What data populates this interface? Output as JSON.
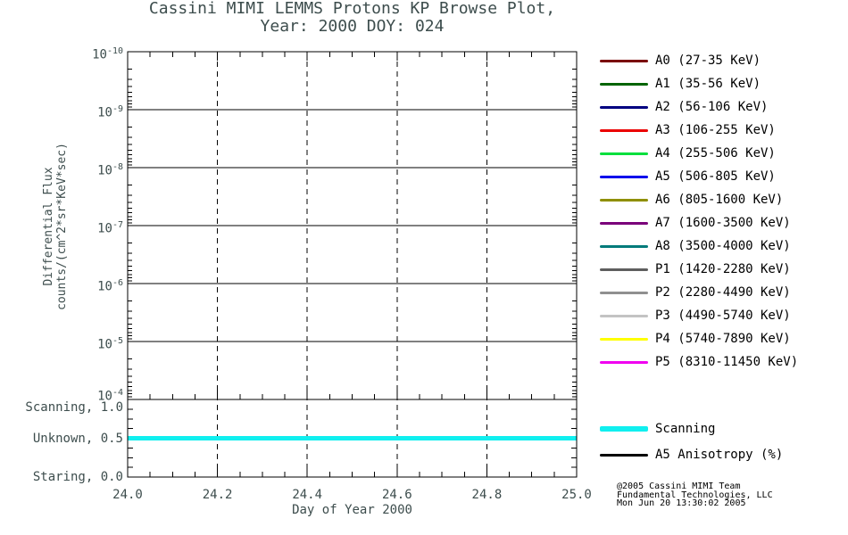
{
  "title": {
    "line1": "Cassini MIMI LEMMS Protons KP Browse Plot,",
    "line2": "Year: 2000 DOY: 024"
  },
  "chart_data": {
    "type": "line",
    "title": "Cassini MIMI LEMMS Protons KP Browse Plot, Year: 2000 DOY: 024",
    "xlabel": "Day of Year 2000",
    "ylabel_lines": [
      "Differential Flux",
      "counts/(cm^2*sr*KeV*sec)"
    ],
    "xlim": [
      24.0,
      25.0
    ],
    "x_tick_labels": [
      "24.0",
      "24.2",
      "24.4",
      "24.6",
      "24.8",
      "25.0"
    ],
    "x_minor_step": 0.05,
    "y_axis": {
      "scale": "log",
      "direction": "inverted-top-to-bottom",
      "exponents": [
        "-10",
        "-9",
        "-8",
        "-7",
        "-6",
        "-5",
        "-4"
      ]
    },
    "grid": {
      "horizontal": "solid",
      "vertical": "dashed"
    },
    "mode_axis": {
      "range": [
        0.0,
        1.0
      ],
      "ticks": [
        {
          "display": "Scanning, 1.0",
          "value": 1.0
        },
        {
          "display": "Unknown, 0.5",
          "value": 0.5
        },
        {
          "display": "Staring, 0.0",
          "value": 0.0
        }
      ]
    },
    "series": [
      {
        "name": "Scan Mode",
        "axis": "mode",
        "color": "#10EFEF",
        "width": 5,
        "x": [
          24.0,
          25.0
        ],
        "values": [
          0.5,
          0.5
        ]
      }
    ]
  },
  "legend": {
    "items": [
      {
        "label": "A0 (27-35 KeV)",
        "color": "#7A0000"
      },
      {
        "label": "A1 (35-56 KeV)",
        "color": "#006400"
      },
      {
        "label": "A2 (56-106 KeV)",
        "color": "#000080"
      },
      {
        "label": "A3 (106-255 KeV)",
        "color": "#EB0000"
      },
      {
        "label": "A4 (255-506 KeV)",
        "color": "#00DF3C"
      },
      {
        "label": "A5 (506-805 KeV)",
        "color": "#0000EB"
      },
      {
        "label": "A6 (805-1600 KeV)",
        "color": "#8F8F00"
      },
      {
        "label": "A7 (1600-3500 KeV)",
        "color": "#7A007A"
      },
      {
        "label": "A8 (3500-4000 KeV)",
        "color": "#007A7A"
      },
      {
        "label": "P1 (1420-2280 KeV)",
        "color": "#5E5E5E"
      },
      {
        "label": "P2 (2280-4490 KeV)",
        "color": "#8F8F8F"
      },
      {
        "label": "P3 (4490-5740 KeV)",
        "color": "#C3C3C3"
      },
      {
        "label": "P4 (5740-7890 KeV)",
        "color": "#FFFF00"
      },
      {
        "label": "P5 (8310-11450 KeV)",
        "color": "#F000F0"
      }
    ]
  },
  "mode_legend": {
    "items": [
      {
        "label": "Scanning",
        "color": "#10EFEF",
        "thickness": 6
      },
      {
        "label": "A5 Anisotropy (%)",
        "color": "#000000",
        "thickness": 3
      }
    ]
  },
  "copyright": {
    "line1": "@2005 Cassini MIMI Team",
    "line2": "Fundamental Technologies, LLC",
    "line3": "Mon Jun 20 13:30:02 2005"
  }
}
